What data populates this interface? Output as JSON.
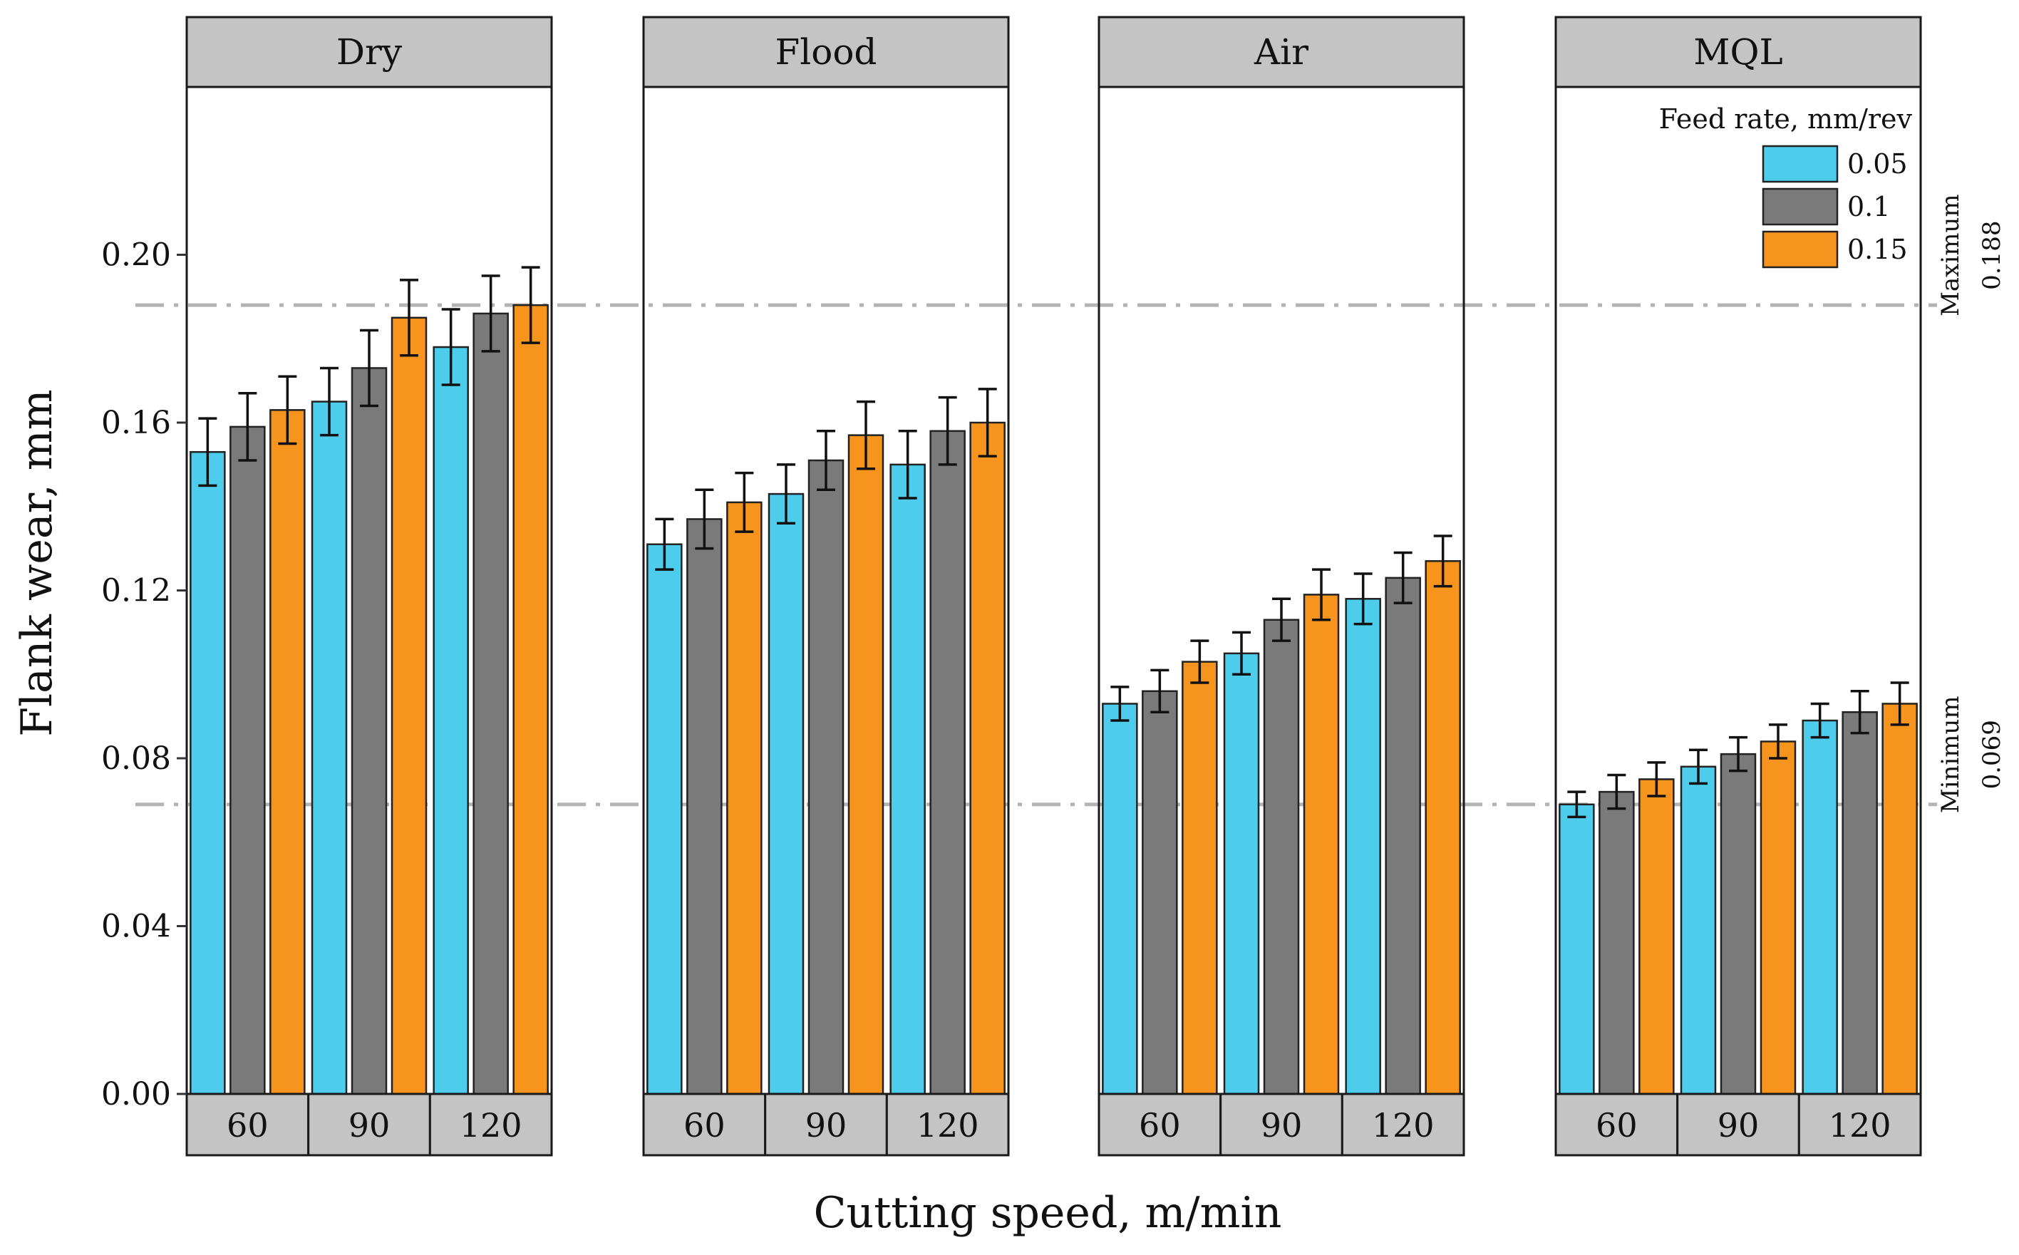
{
  "chart_data": {
    "type": "bar",
    "title": "",
    "xlabel": "Cutting speed, m/min",
    "ylabel": "Flank wear, mm",
    "ylim": [
      0,
      0.24
    ],
    "yticks": [
      "0.00",
      "0.04",
      "0.08",
      "0.12",
      "0.16",
      "0.20"
    ],
    "categories": [
      "60",
      "90",
      "120"
    ],
    "legend": {
      "title": "Feed rate, mm/rev",
      "position": "top-right",
      "entries": [
        {
          "label": "0.05",
          "color": "#4DCCEC"
        },
        {
          "label": "0.1",
          "color": "#7A7A7A"
        },
        {
          "label": "0.15",
          "color": "#F7941D"
        }
      ]
    },
    "reference_lines": [
      {
        "name": "Maximum",
        "value": 0.188,
        "label": "0.188"
      },
      {
        "name": "Minimum",
        "value": 0.069,
        "label": "0.069"
      }
    ],
    "facets": [
      {
        "name": "Dry",
        "series": [
          {
            "name": "0.05",
            "values": [
              0.153,
              0.165,
              0.178
            ],
            "errors": [
              0.008,
              0.008,
              0.009
            ]
          },
          {
            "name": "0.1",
            "values": [
              0.159,
              0.173,
              0.186
            ],
            "errors": [
              0.008,
              0.009,
              0.009
            ]
          },
          {
            "name": "0.15",
            "values": [
              0.163,
              0.185,
              0.188
            ],
            "errors": [
              0.008,
              0.009,
              0.009
            ]
          }
        ]
      },
      {
        "name": "Flood",
        "series": [
          {
            "name": "0.05",
            "values": [
              0.131,
              0.143,
              0.15
            ],
            "errors": [
              0.006,
              0.007,
              0.008
            ]
          },
          {
            "name": "0.1",
            "values": [
              0.137,
              0.151,
              0.158
            ],
            "errors": [
              0.007,
              0.007,
              0.008
            ]
          },
          {
            "name": "0.15",
            "values": [
              0.141,
              0.157,
              0.16
            ],
            "errors": [
              0.007,
              0.008,
              0.008
            ]
          }
        ]
      },
      {
        "name": "Air",
        "series": [
          {
            "name": "0.05",
            "values": [
              0.093,
              0.105,
              0.118
            ],
            "errors": [
              0.004,
              0.005,
              0.006
            ]
          },
          {
            "name": "0.1",
            "values": [
              0.096,
              0.113,
              0.123
            ],
            "errors": [
              0.005,
              0.005,
              0.006
            ]
          },
          {
            "name": "0.15",
            "values": [
              0.103,
              0.119,
              0.127
            ],
            "errors": [
              0.005,
              0.006,
              0.006
            ]
          }
        ]
      },
      {
        "name": "MQL",
        "series": [
          {
            "name": "0.05",
            "values": [
              0.069,
              0.078,
              0.089
            ],
            "errors": [
              0.003,
              0.004,
              0.004
            ]
          },
          {
            "name": "0.1",
            "values": [
              0.072,
              0.081,
              0.091
            ],
            "errors": [
              0.004,
              0.004,
              0.005
            ]
          },
          {
            "name": "0.15",
            "values": [
              0.075,
              0.084,
              0.093
            ],
            "errors": [
              0.004,
              0.004,
              0.005
            ]
          }
        ]
      }
    ]
  }
}
